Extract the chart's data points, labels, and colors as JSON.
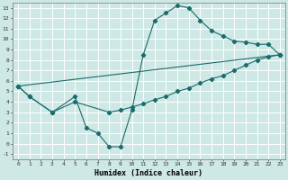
{
  "xlabel": "Humidex (Indice chaleur)",
  "background_color": "#cde8e5",
  "grid_color": "#ffffff",
  "line_color": "#1a6b6b",
  "xlim": [
    -0.5,
    23.5
  ],
  "ylim": [
    -1.5,
    13.5
  ],
  "xticks": [
    0,
    1,
    2,
    3,
    4,
    5,
    6,
    7,
    8,
    9,
    10,
    11,
    12,
    13,
    14,
    15,
    16,
    17,
    18,
    19,
    20,
    21,
    22,
    23
  ],
  "yticks": [
    -1,
    0,
    1,
    2,
    3,
    4,
    5,
    6,
    7,
    8,
    9,
    10,
    11,
    12,
    13
  ],
  "line1_x": [
    0,
    1,
    3,
    5,
    6,
    7,
    8,
    9,
    10,
    11,
    12,
    13,
    14,
    15,
    16,
    17,
    18,
    19,
    20,
    21,
    22,
    23
  ],
  "line1_y": [
    5.5,
    4.5,
    3.0,
    4.5,
    1.5,
    1.0,
    -0.3,
    -0.3,
    3.2,
    8.5,
    11.8,
    12.5,
    13.2,
    13.0,
    11.8,
    10.8,
    10.3,
    9.8,
    9.7,
    9.5,
    9.5,
    8.5
  ],
  "line2_x": [
    0,
    23
  ],
  "line2_y": [
    5.5,
    8.5
  ],
  "line3_x": [
    0,
    1,
    3,
    5,
    8,
    9,
    10,
    11,
    12,
    13,
    14,
    15,
    16,
    17,
    18,
    19,
    20,
    21,
    22,
    23
  ],
  "line3_y": [
    5.5,
    4.5,
    3.0,
    4.0,
    3.0,
    3.2,
    3.5,
    3.8,
    4.2,
    4.5,
    5.0,
    5.3,
    5.8,
    6.2,
    6.5,
    7.0,
    7.5,
    8.0,
    8.3,
    8.5
  ],
  "marker": "D",
  "markersize": 2.2,
  "linewidth": 0.8
}
